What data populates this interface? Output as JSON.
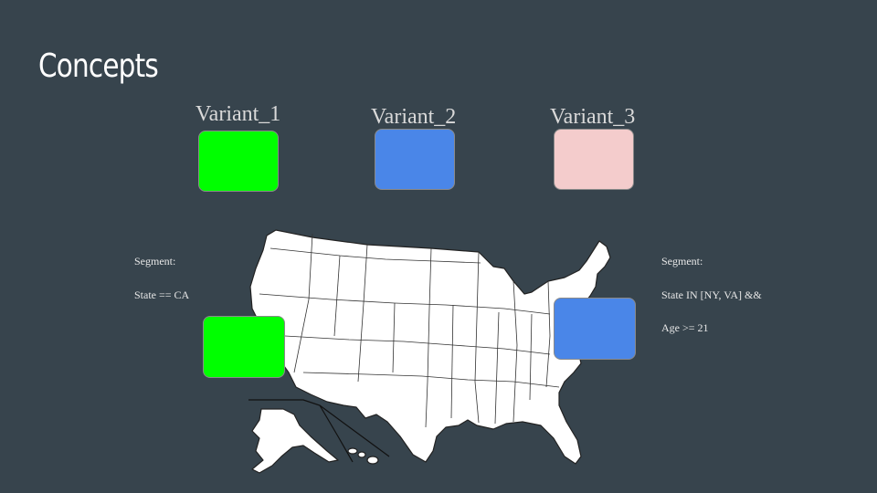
{
  "slide": {
    "title": "Concepts"
  },
  "variants": [
    {
      "label": "Variant_1",
      "color": "#00ff00"
    },
    {
      "label": "Variant_2",
      "color": "#4a86e8"
    },
    {
      "label": "Variant_3",
      "color": "#f4cccc"
    }
  ],
  "segments": {
    "left": {
      "heading": "Segment:",
      "rule": "State == CA",
      "rule2": "",
      "color": "#00ff00"
    },
    "right": {
      "heading": "Segment:",
      "rule": "State IN [NY, VA] &&",
      "rule2": "Age >= 21",
      "color": "#4a86e8"
    }
  },
  "map": {
    "name": "us-states-map"
  }
}
